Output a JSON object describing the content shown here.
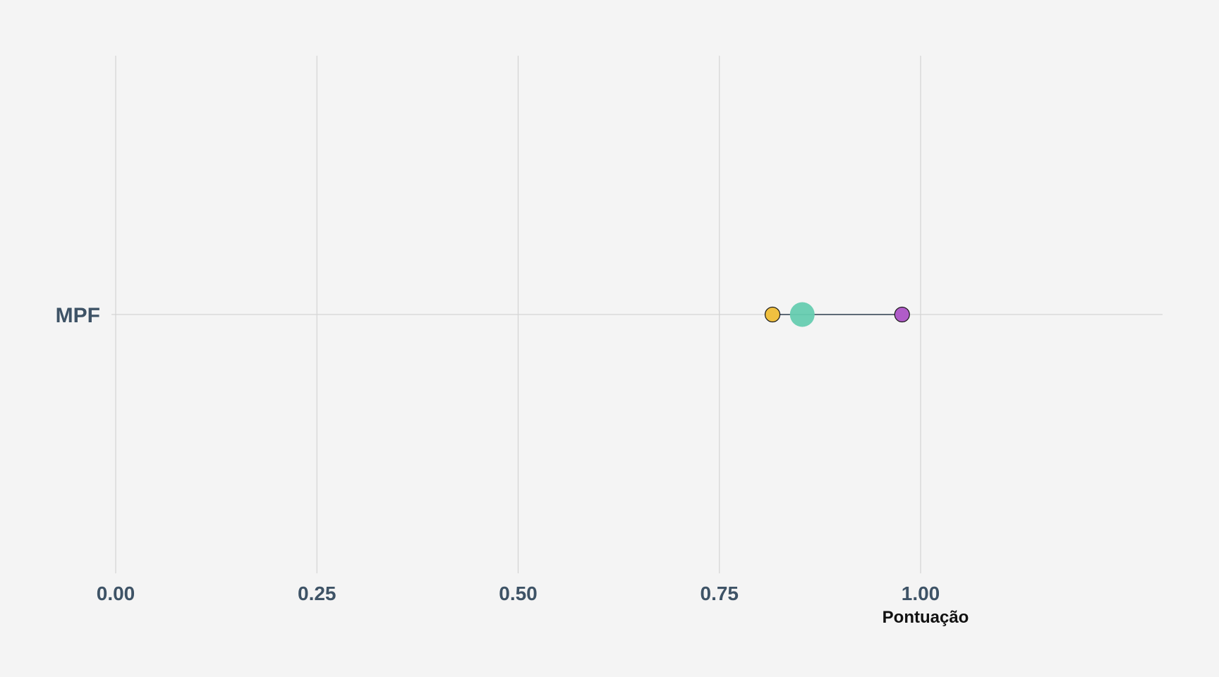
{
  "chart_data": {
    "type": "scatter",
    "orientation": "horizontal-dumbbell",
    "categories": [
      "MPF"
    ],
    "xlabel": "Pontuação",
    "ylabel": "",
    "xlim": [
      0,
      1.3
    ],
    "xticks": [
      0,
      0.25,
      0.5,
      0.75,
      1.0
    ],
    "xtick_labels": [
      "0.00",
      "0.25",
      "0.50",
      "0.75",
      "1.00"
    ],
    "grid": true,
    "legend": "none",
    "points": [
      {
        "category": "MPF",
        "x": 0.816,
        "color": "#f0c040",
        "size": "small",
        "outlined": true
      },
      {
        "category": "MPF",
        "x": 0.853,
        "color": "#66ccb0",
        "size": "large",
        "outlined": false
      },
      {
        "category": "MPF",
        "x": 0.977,
        "color": "#b05cc8",
        "size": "small",
        "outlined": true
      }
    ],
    "segments": [
      {
        "category": "MPF",
        "x_start": 0.816,
        "x_end": 0.977
      }
    ]
  },
  "colors": {
    "background": "#f4f4f4",
    "grid": "#d4d4d4",
    "tick_text": "#3e5366",
    "axis_title": "#111111",
    "segment": "#2e3e4e",
    "point_outline": "#1a1a1a"
  }
}
